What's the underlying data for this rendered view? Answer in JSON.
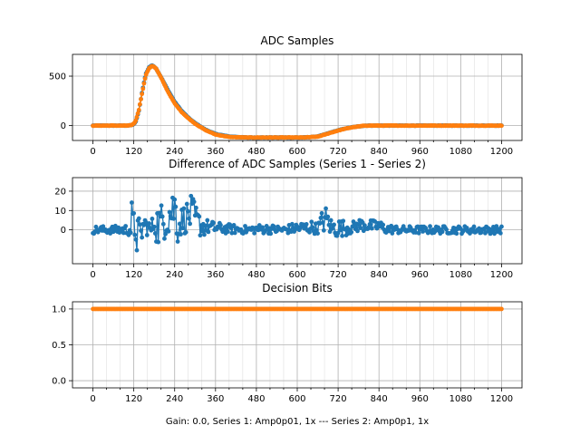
{
  "colors": {
    "series1": "#1f77b4",
    "series2": "#ff7f0e",
    "grid_major": "#b0b0b0",
    "grid_minor": "#d9d9d9"
  },
  "footer": {
    "xlabel": "Gain: 0.0, Series 1: Amp0p01, 1x --- Series 2: Amp0p1, 1x"
  },
  "chart_data": [
    {
      "type": "scatter",
      "title": "ADC Samples",
      "xlim": [
        -60,
        1260
      ],
      "ylim": [
        -150,
        720
      ],
      "xticks": [
        0,
        120,
        240,
        360,
        480,
        600,
        720,
        840,
        960,
        1080,
        1200
      ],
      "x_minor_step": 40,
      "yticks": [
        0,
        500
      ],
      "grid": true,
      "n_samples": 1200,
      "series": [
        {
          "key": "s1",
          "color": "#1f77b4",
          "x": [
            0,
            100,
            115,
            125,
            135,
            145,
            155,
            165,
            175,
            185,
            200,
            220,
            240,
            260,
            280,
            300,
            330,
            360,
            400,
            450,
            500,
            560,
            620,
            660,
            680,
            700,
            720,
            740,
            760,
            780,
            800,
            830,
            860,
            900,
            1000,
            1100,
            1200
          ],
          "y": [
            0,
            0,
            5,
            30,
            150,
            350,
            520,
            590,
            610,
            580,
            490,
            360,
            240,
            150,
            80,
            25,
            -40,
            -85,
            -110,
            -120,
            -120,
            -120,
            -120,
            -110,
            -90,
            -68,
            -48,
            -30,
            -17,
            -8,
            0,
            0,
            0,
            0,
            0,
            0,
            0
          ]
        },
        {
          "key": "s2",
          "color": "#ff7f0e",
          "x": [
            0,
            100,
            115,
            125,
            135,
            145,
            155,
            165,
            175,
            185,
            200,
            220,
            240,
            260,
            280,
            300,
            330,
            360,
            400,
            450,
            500,
            560,
            620,
            660,
            680,
            700,
            720,
            740,
            760,
            780,
            800,
            830,
            860,
            900,
            1000,
            1100,
            1200
          ],
          "y": [
            0,
            0,
            5,
            40,
            160,
            340,
            510,
            580,
            605,
            580,
            485,
            345,
            225,
            140,
            75,
            20,
            -45,
            -90,
            -115,
            -120,
            -120,
            -120,
            -120,
            -112,
            -92,
            -70,
            -50,
            -32,
            -18,
            -9,
            0,
            0,
            0,
            0,
            0,
            0,
            0
          ]
        }
      ]
    },
    {
      "type": "line",
      "title": "Difference of ADC Samples (Series 1 - Series 2)",
      "xlim": [
        -60,
        1260
      ],
      "ylim": [
        -17.5,
        27
      ],
      "xticks": [
        0,
        120,
        240,
        360,
        480,
        600,
        720,
        840,
        960,
        1080,
        1200
      ],
      "x_minor_step": 40,
      "yticks": [
        0,
        10,
        20
      ],
      "grid": true,
      "series": [
        {
          "key": "diff",
          "color": "#1f77b4",
          "x": [
            0,
            60,
            110,
            115,
            118,
            120,
            122,
            125,
            128,
            132,
            140,
            150,
            160,
            170,
            180,
            190,
            200,
            210,
            218,
            225,
            232,
            238,
            242,
            246,
            250,
            255,
            260,
            270,
            280,
            290,
            300,
            310,
            320,
            330,
            340,
            360,
            400,
            450,
            500,
            560,
            600,
            620,
            640,
            660,
            680,
            690,
            700,
            720,
            740,
            760,
            780,
            800,
            820,
            840,
            860,
            900,
            960,
            1020,
            1080,
            1140,
            1200
          ],
          "ranges": [
            [
              -2,
              2
            ],
            [
              -2,
              2
            ],
            [
              -3,
              3
            ],
            [
              -12,
              19
            ],
            [
              -15,
              12
            ],
            [
              -8,
              10
            ],
            [
              -10,
              8
            ],
            [
              -5,
              12
            ],
            [
              -16,
              6
            ],
            [
              -6,
              8
            ],
            [
              -10,
              4
            ],
            [
              -2,
              8
            ],
            [
              -3,
              6
            ],
            [
              -4,
              4
            ],
            [
              -2,
              10
            ],
            [
              -10,
              14
            ],
            [
              -6,
              14
            ],
            [
              -5,
              16
            ],
            [
              -4,
              18
            ],
            [
              -3,
              20
            ],
            [
              -2,
              22
            ],
            [
              -1,
              24
            ],
            [
              0,
              24
            ],
            [
              -5,
              12
            ],
            [
              -8,
              8
            ],
            [
              -4,
              10
            ],
            [
              -3,
              12
            ],
            [
              -2,
              14
            ],
            [
              -2,
              16
            ],
            [
              -1,
              18
            ],
            [
              -2,
              14
            ],
            [
              -3,
              10
            ],
            [
              -4,
              8
            ],
            [
              -3,
              6
            ],
            [
              -2,
              5
            ],
            [
              -2,
              4
            ],
            [
              -2,
              3
            ],
            [
              -2,
              2
            ],
            [
              -2,
              3
            ],
            [
              -2,
              2
            ],
            [
              -2,
              4
            ],
            [
              -2,
              4
            ],
            [
              -2,
              5
            ],
            [
              -2,
              3
            ],
            [
              -2,
              14
            ],
            [
              -1,
              10
            ],
            [
              -4,
              6
            ],
            [
              -4,
              6
            ],
            [
              -3,
              5
            ],
            [
              -2,
              4
            ],
            [
              -1,
              6
            ],
            [
              -1,
              6
            ],
            [
              -1,
              5
            ],
            [
              -1,
              5
            ],
            [
              -2,
              3
            ],
            [
              -2,
              2
            ],
            [
              -2,
              2
            ],
            [
              -2,
              2
            ],
            [
              -2,
              2
            ],
            [
              -2,
              2
            ],
            [
              -2,
              2
            ]
          ]
        }
      ]
    },
    {
      "type": "scatter",
      "title": "Decision Bits",
      "xlim": [
        -60,
        1260
      ],
      "ylim": [
        -0.1,
        1.1
      ],
      "xticks": [
        0,
        120,
        240,
        360,
        480,
        600,
        720,
        840,
        960,
        1080,
        1200
      ],
      "x_minor_step": 40,
      "yticks": [
        0.0,
        0.5,
        1.0
      ],
      "grid": true,
      "series": [
        {
          "key": "bits",
          "color": "#ff7f0e",
          "x": [
            0,
            1200
          ],
          "y": [
            1.0,
            1.0
          ]
        }
      ]
    }
  ],
  "tick_text": {
    "x": [
      "0",
      "120",
      "240",
      "360",
      "480",
      "600",
      "720",
      "840",
      "960",
      "1080",
      "1200"
    ],
    "y1": [
      "0",
      "500"
    ],
    "y2": [
      "0",
      "10",
      "20"
    ],
    "y3": [
      "0.0",
      "0.5",
      "1.0"
    ]
  }
}
